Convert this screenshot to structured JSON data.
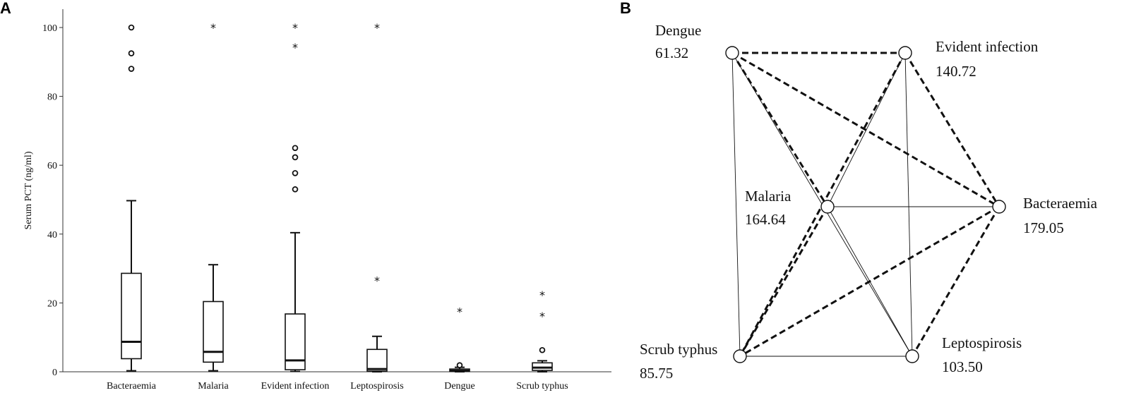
{
  "panels": {
    "a": "A",
    "b": "B"
  },
  "chart_data": [
    {
      "type": "boxplot",
      "ylabel": "Serum PCT (ng/ml)",
      "ylim": [
        0,
        105
      ],
      "yticks": [
        0,
        20,
        40,
        60,
        80,
        100
      ],
      "categories": [
        "Bacteraemia",
        "Malaria",
        "Evident  infection",
        "Leptospirosis",
        "Dengue",
        "Scrub typhus"
      ],
      "boxes": [
        {
          "category": "Bacteraemia",
          "q1": 3.8,
          "median": 8.7,
          "q3": 28.6,
          "whisker_low": 0.3,
          "whisker_high": 49.7,
          "outliers": [
            {
              "value": 100,
              "marker": "circle"
            },
            {
              "value": 92.5,
              "marker": "circle"
            },
            {
              "value": 88,
              "marker": "circle"
            }
          ]
        },
        {
          "category": "Malaria",
          "q1": 2.8,
          "median": 5.8,
          "q3": 20.4,
          "whisker_low": 0.3,
          "whisker_high": 31.1,
          "outliers": [
            {
              "value": 100,
              "marker": "star"
            }
          ]
        },
        {
          "category": "Evident  infection",
          "q1": 0.6,
          "median": 3.3,
          "q3": 16.8,
          "whisker_low": 0.1,
          "whisker_high": 40.4,
          "outliers": [
            {
              "value": 100,
              "marker": "star"
            },
            {
              "value": 94.3,
              "marker": "star"
            },
            {
              "value": 65,
              "marker": "circle"
            },
            {
              "value": 62.3,
              "marker": "circle"
            },
            {
              "value": 57.7,
              "marker": "circle"
            },
            {
              "value": 53,
              "marker": "circle"
            }
          ]
        },
        {
          "category": "Leptospirosis",
          "q1": 0.2,
          "median": 0.8,
          "q3": 6.5,
          "whisker_low": 0.0,
          "whisker_high": 10.3,
          "outliers": [
            {
              "value": 100,
              "marker": "star"
            },
            {
              "value": 26.5,
              "marker": "star"
            }
          ]
        },
        {
          "category": "Dengue",
          "q1": 0.1,
          "median": 0.3,
          "q3": 0.8,
          "whisker_low": 0.0,
          "whisker_high": 1.3,
          "outliers": [
            {
              "value": 1.9,
              "marker": "circle"
            },
            {
              "value": 17.5,
              "marker": "star"
            }
          ]
        },
        {
          "category": "Scrub typhus",
          "q1": 0.4,
          "median": 1.2,
          "q3": 2.6,
          "whisker_low": 0.0,
          "whisker_high": 3.2,
          "outliers": [
            {
              "value": 6.3,
              "marker": "circle"
            },
            {
              "value": 16.2,
              "marker": "star"
            },
            {
              "value": 22.3,
              "marker": "star"
            }
          ]
        }
      ]
    },
    {
      "type": "network",
      "nodes": [
        {
          "id": "dengue",
          "name": "Dengue",
          "value": "61.32"
        },
        {
          "id": "evident",
          "name": "Evident infection",
          "value": "140.72"
        },
        {
          "id": "malaria",
          "name": "Malaria",
          "value": "164.64"
        },
        {
          "id": "bacteraemia",
          "name": "Bacteraemia",
          "value": "179.05"
        },
        {
          "id": "scrub",
          "name": "Scrub typhus",
          "value": "85.75"
        },
        {
          "id": "lepto",
          "name": "Leptospirosis",
          "value": "103.50"
        }
      ],
      "edges": [
        {
          "from": "dengue",
          "to": "evident",
          "style": "dashed"
        },
        {
          "from": "dengue",
          "to": "malaria",
          "style": "dashed"
        },
        {
          "from": "dengue",
          "to": "bacteraemia",
          "style": "dashed"
        },
        {
          "from": "dengue",
          "to": "scrub",
          "style": "solid"
        },
        {
          "from": "dengue",
          "to": "lepto",
          "style": "solid"
        },
        {
          "from": "evident",
          "to": "bacteraemia",
          "style": "dashed"
        },
        {
          "from": "evident",
          "to": "scrub",
          "style": "dashed"
        },
        {
          "from": "evident",
          "to": "malaria",
          "style": "solid"
        },
        {
          "from": "evident",
          "to": "lepto",
          "style": "solid"
        },
        {
          "from": "malaria",
          "to": "bacteraemia",
          "style": "solid"
        },
        {
          "from": "malaria",
          "to": "scrub",
          "style": "dashed"
        },
        {
          "from": "malaria",
          "to": "lepto",
          "style": "solid"
        },
        {
          "from": "bacteraemia",
          "to": "scrub",
          "style": "dashed"
        },
        {
          "from": "bacteraemia",
          "to": "lepto",
          "style": "dashed"
        },
        {
          "from": "scrub",
          "to": "lepto",
          "style": "solid"
        }
      ]
    }
  ]
}
